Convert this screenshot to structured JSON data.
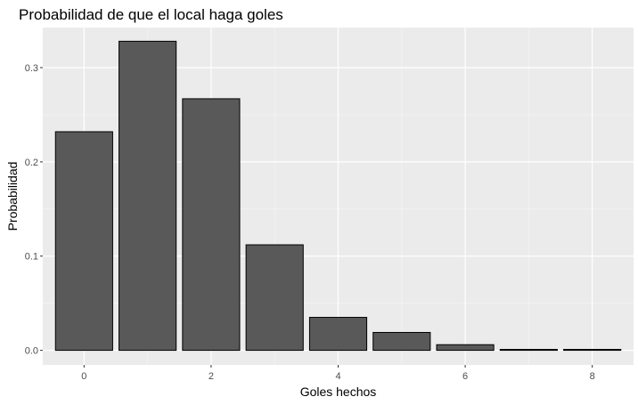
{
  "chart_data": {
    "type": "bar",
    "title": "Probabilidad de que el local haga goles",
    "xlabel": "Goles hechos",
    "ylabel": "Probabilidad",
    "x": [
      0,
      1,
      2,
      3,
      4,
      5,
      6,
      7,
      8
    ],
    "values": [
      0.232,
      0.328,
      0.267,
      0.112,
      0.035,
      0.019,
      0.006,
      0.001,
      0.001
    ],
    "xlim": [
      -0.65,
      8.65
    ],
    "ylim": [
      -0.0155,
      0.3425
    ],
    "x_ticks": [
      0,
      2,
      4,
      6,
      8
    ],
    "x_tick_labels": [
      "0",
      "2",
      "4",
      "6",
      "8"
    ],
    "y_ticks": [
      0.0,
      0.1,
      0.2,
      0.3
    ],
    "y_tick_labels": [
      "0.0",
      "0.1",
      "0.2",
      "0.3"
    ],
    "grid": true,
    "legend": "none",
    "colors": {
      "bar_fill": "#595959",
      "bar_stroke": "#000000",
      "panel_background": "#ebebeb",
      "grid_major": "#ffffff",
      "tick_text": "#4d4d4d"
    }
  }
}
